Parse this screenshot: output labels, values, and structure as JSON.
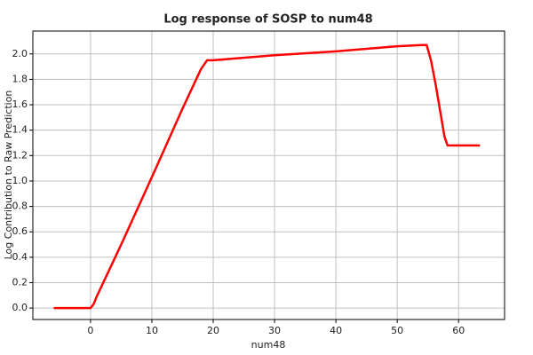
{
  "chart_data": {
    "type": "line",
    "title": "Log response of SOSP to num48",
    "x_label": "num48",
    "y_label": "Log Contribution to Raw Prediction",
    "x": [
      -6,
      0,
      0.5,
      1,
      5,
      10,
      15,
      18,
      19,
      20,
      30,
      40,
      50,
      54,
      54.8,
      55.5,
      56.3,
      57,
      57.7,
      58.2,
      63.5
    ],
    "series": [
      {
        "name": "num48",
        "color": "#ff0000",
        "values": [
          0,
          0,
          0.03,
          0.09,
          0.5,
          1.03,
          1.57,
          1.88,
          1.95,
          1.95,
          1.99,
          2.02,
          2.06,
          2.07,
          2.07,
          1.95,
          1.75,
          1.55,
          1.35,
          1.28,
          1.28
        ]
      }
    ],
    "xlim": [
      -9.4,
      67.5
    ],
    "xticks": [
      0,
      10,
      20,
      30,
      40,
      50,
      60
    ],
    "ylim": [
      -0.09,
      2.18
    ],
    "yticks": [
      {
        "value": 0,
        "label": "0.0"
      },
      0.2,
      0.4,
      0.6,
      0.8,
      {
        "value": 1,
        "label": "1.0"
      },
      1.2,
      1.4,
      1.6,
      1.8,
      {
        "value": 2,
        "label": "2.0"
      }
    ],
    "grid": true
  }
}
